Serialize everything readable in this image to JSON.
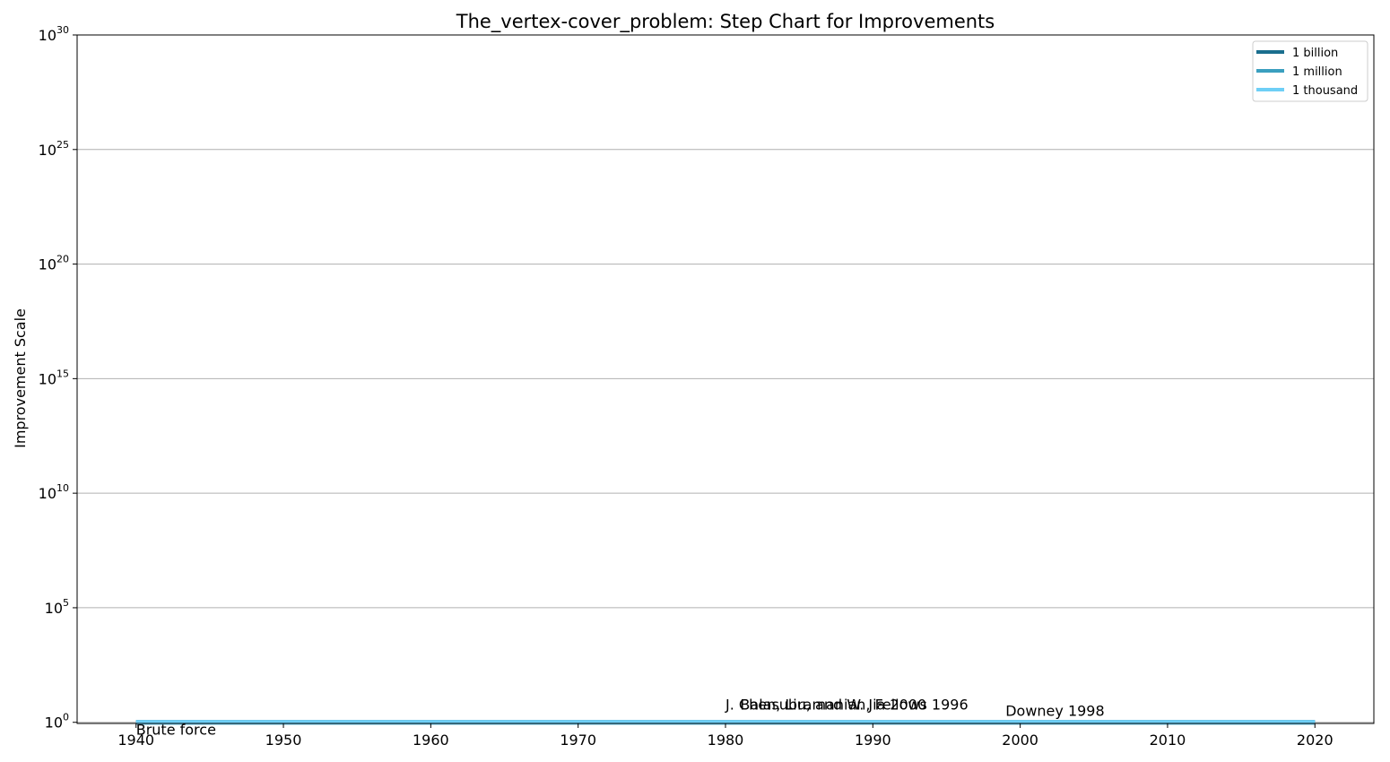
{
  "chart_data": {
    "type": "line",
    "title": "The_vertex-cover_problem: Step Chart for Improvements",
    "xlabel": "",
    "ylabel": "Improvement Scale",
    "xlim": [
      1936,
      2024
    ],
    "ylim_log10": [
      -0.05,
      30
    ],
    "yscale": "log",
    "x_ticks": [
      1940,
      1950,
      1960,
      1970,
      1980,
      1990,
      2000,
      2010,
      2020
    ],
    "y_tick_exponents": [
      0,
      5,
      10,
      15,
      20,
      25,
      30
    ],
    "y_tick_base": "10",
    "grid": "y-major",
    "legend_position": "top-right",
    "series": [
      {
        "name": "1 billion",
        "color": "#1a6e8e",
        "x": [
          1940,
          2020
        ],
        "y": [
          1,
          1
        ]
      },
      {
        "name": "1 million",
        "color": "#3a9fbf",
        "x": [
          1940,
          2020
        ],
        "y": [
          1,
          1
        ]
      },
      {
        "name": "1 thousand",
        "color": "#6ecff6",
        "x": [
          1940,
          2020
        ],
        "y": [
          1,
          1
        ]
      }
    ],
    "annotations": [
      {
        "text": "Brute force",
        "x": 1940,
        "y": 1
      },
      {
        "text": "J. Chen, Liu, and W. Jia 2000",
        "x": 1980,
        "y": 1
      },
      {
        "text": "Balasubramanian, Fellows 1996",
        "x": 1981,
        "y": 1
      },
      {
        "text": "Downey 1998",
        "x": 1999,
        "y": 1
      }
    ]
  }
}
